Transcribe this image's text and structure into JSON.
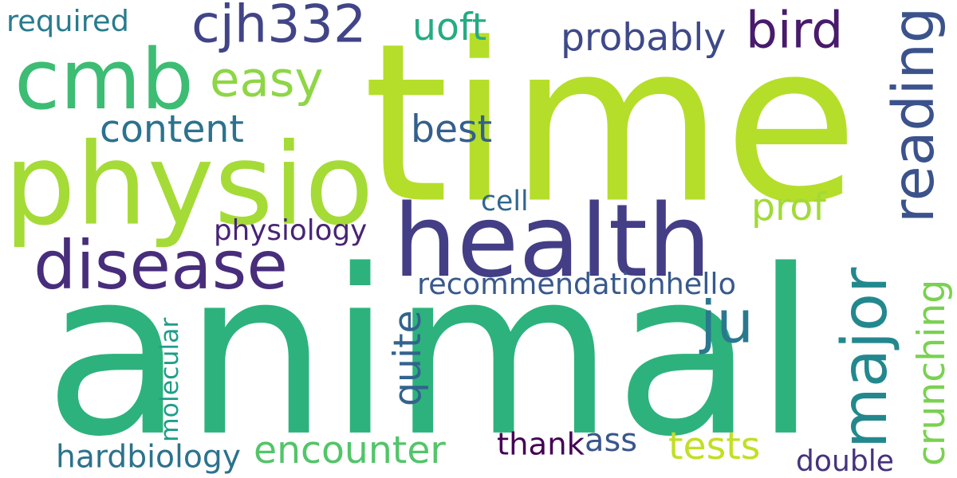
{
  "background": "#ffffff",
  "words": [
    {
      "text": "time",
      "color": "#b5de2b"
    },
    {
      "text": "animal",
      "color": "#2db27d"
    },
    {
      "text": "health",
      "color": "#433e85"
    },
    {
      "text": "physio",
      "color": "#a5db36"
    },
    {
      "text": "cmb",
      "color": "#3dbc74"
    },
    {
      "text": "disease",
      "color": "#472d7b"
    },
    {
      "text": "cjh332",
      "color": "#414487"
    },
    {
      "text": "bird",
      "color": "#481b6d"
    },
    {
      "text": "major",
      "color": "#23888e"
    },
    {
      "text": "reading",
      "color": "#3b528b"
    },
    {
      "text": "easy",
      "color": "#8ed645"
    },
    {
      "text": "probably",
      "color": "#3e4989"
    },
    {
      "text": "uoft",
      "color": "#25ab82"
    },
    {
      "text": "content",
      "color": "#2c728e"
    },
    {
      "text": "best",
      "color": "#355f8d"
    },
    {
      "text": "prof",
      "color": "#a2da37"
    },
    {
      "text": "crunching",
      "color": "#7ad151"
    },
    {
      "text": "ju",
      "color": "#2a788e"
    },
    {
      "text": "quite",
      "color": "#33638d"
    },
    {
      "text": "encounter",
      "color": "#52c569"
    },
    {
      "text": "tests",
      "color": "#c2df23"
    },
    {
      "text": "cell",
      "color": "#31668e"
    },
    {
      "text": "physiology",
      "color": "#482475"
    },
    {
      "text": "recommendationhello",
      "color": "#38598c"
    },
    {
      "text": "molecular",
      "color": "#1f9e89"
    },
    {
      "text": "required",
      "color": "#297b8e"
    },
    {
      "text": "hardbiology",
      "color": "#2c728e"
    },
    {
      "text": "thank",
      "color": "#440154"
    },
    {
      "text": "ass",
      "color": "#39568c"
    },
    {
      "text": "double",
      "color": "#46327e"
    }
  ]
}
